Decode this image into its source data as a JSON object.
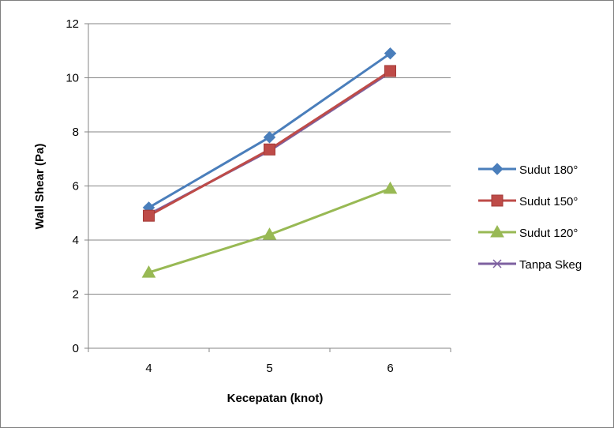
{
  "chart_data": {
    "type": "line",
    "title": "",
    "xlabel": "Kecepatan (knot)",
    "ylabel": "Wall Shear (Pa)",
    "x": [
      4,
      5,
      6
    ],
    "ylim": [
      0,
      12
    ],
    "yticks": [
      0,
      2,
      4,
      6,
      8,
      10,
      12
    ],
    "grid": true,
    "legend_position": "right",
    "series": [
      {
        "name": "Sudut 180°",
        "values": [
          5.2,
          7.8,
          10.9
        ],
        "color": "#4a7ebb",
        "marker": "diamond"
      },
      {
        "name": "Sudut 150°",
        "values": [
          4.9,
          7.35,
          10.25
        ],
        "color": "#be4b48",
        "marker": "square"
      },
      {
        "name": "Sudut 120°",
        "values": [
          2.8,
          4.2,
          5.9
        ],
        "color": "#98b954",
        "marker": "triangle"
      },
      {
        "name": "Tanpa Skeg",
        "values": [
          4.95,
          7.3,
          10.2
        ],
        "color": "#7d60a0",
        "marker": "x"
      }
    ]
  }
}
